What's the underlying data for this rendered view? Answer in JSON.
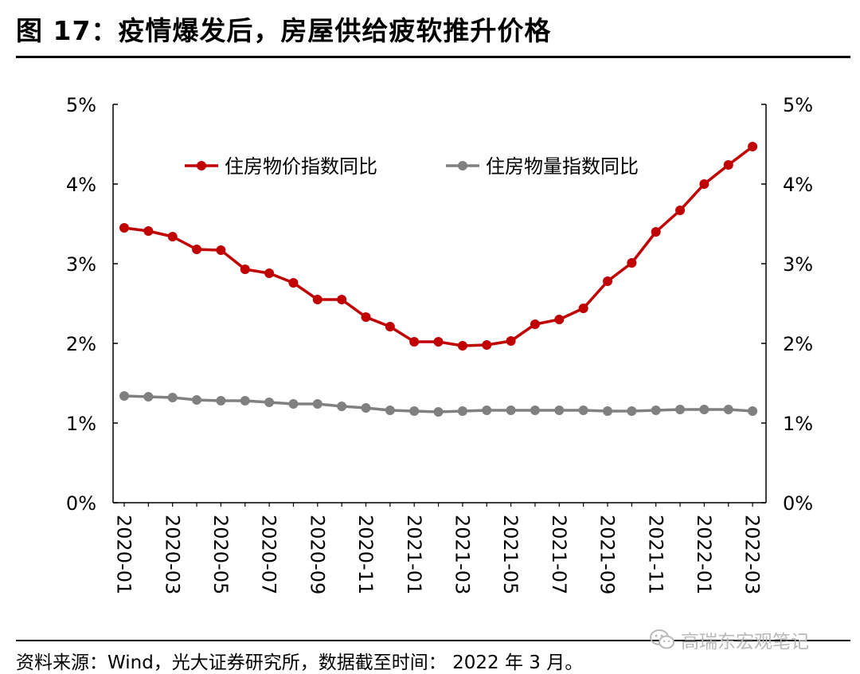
{
  "title": "图 17：疫情爆发后，房屋供给疲软推升价格",
  "source": "资料来源：Wind，光大证券研究所，数据截至时间：  2022 年 3 月。",
  "watermark": "高瑞东宏观笔记",
  "watermark_icon": "wechat-icon",
  "chart_data": {
    "type": "line",
    "ylim": [
      0,
      5
    ],
    "y_ticks": [
      "0%",
      "1%",
      "2%",
      "3%",
      "4%",
      "5%"
    ],
    "y2_ticks": [
      "0%",
      "1%",
      "2%",
      "3%",
      "4%",
      "5%"
    ],
    "x_tick_labels": [
      "2020-01",
      "2020-03",
      "2020-05",
      "2020-07",
      "2020-09",
      "2020-11",
      "2021-01",
      "2021-03",
      "2021-05",
      "2021-07",
      "2021-09",
      "2021-11",
      "2022-01",
      "2022-03"
    ],
    "x": [
      "2020-01",
      "2020-02",
      "2020-03",
      "2020-04",
      "2020-05",
      "2020-06",
      "2020-07",
      "2020-08",
      "2020-09",
      "2020-10",
      "2020-11",
      "2020-12",
      "2021-01",
      "2021-02",
      "2021-03",
      "2021-04",
      "2021-05",
      "2021-06",
      "2021-07",
      "2021-08",
      "2021-09",
      "2021-10",
      "2021-11",
      "2021-12",
      "2022-01",
      "2022-02",
      "2022-03"
    ],
    "legend_position": "top",
    "series": [
      {
        "name": "住房物价指数同比",
        "color": "#c00000",
        "values": [
          3.45,
          3.41,
          3.34,
          3.18,
          3.17,
          2.93,
          2.88,
          2.76,
          2.55,
          2.55,
          2.33,
          2.21,
          2.02,
          2.02,
          1.97,
          1.98,
          2.03,
          2.24,
          2.3,
          2.44,
          2.78,
          3.01,
          3.4,
          3.67,
          4.0,
          4.24,
          4.47
        ]
      },
      {
        "name": "住房物量指数同比",
        "color": "#808080",
        "values": [
          1.34,
          1.33,
          1.32,
          1.29,
          1.28,
          1.28,
          1.26,
          1.24,
          1.24,
          1.21,
          1.19,
          1.16,
          1.15,
          1.14,
          1.15,
          1.16,
          1.16,
          1.16,
          1.16,
          1.16,
          1.15,
          1.15,
          1.16,
          1.17,
          1.17,
          1.17,
          1.15
        ]
      }
    ]
  }
}
